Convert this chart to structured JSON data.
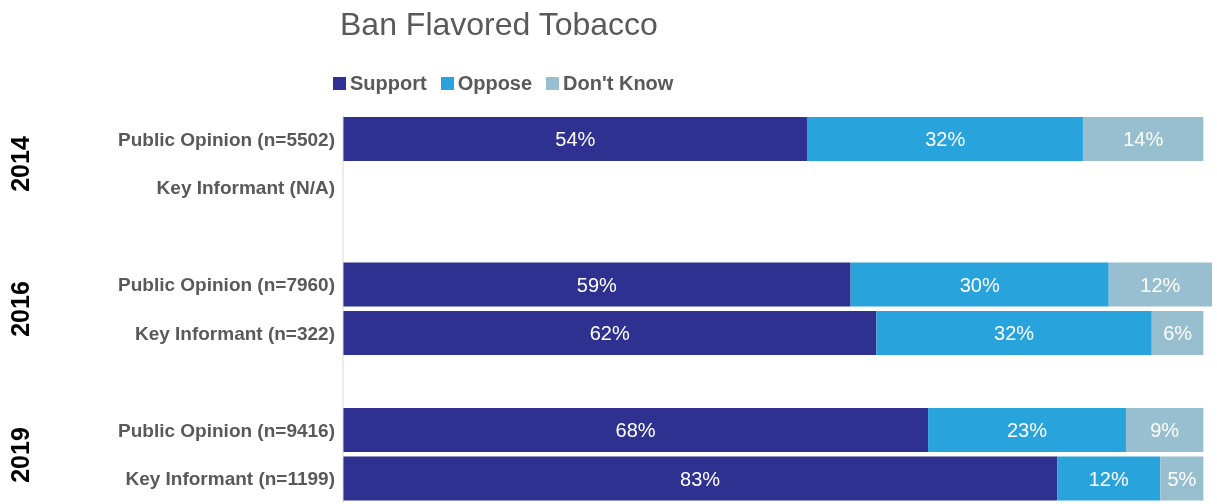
{
  "chart_data": {
    "type": "bar",
    "orientation": "horizontal",
    "stacked": true,
    "title": "Ban Flavored Tobacco",
    "categories": [
      "Public Opinion (n=5502)",
      "Key Informant (N/A)",
      null,
      "Public Opinion (n=7960)",
      "Key Informant (n=322)",
      null,
      "Public Opinion (n=9416)",
      "Key Informant (n=1199)"
    ],
    "series": [
      {
        "name": "Support",
        "color": "#2e3190",
        "values": [
          54,
          null,
          null,
          59,
          62,
          null,
          68,
          83
        ],
        "value_labels": [
          "54%",
          null,
          null,
          "59%",
          "62%",
          null,
          "68%",
          "83%"
        ]
      },
      {
        "name": "Oppose",
        "color": "#29a3dc",
        "values": [
          32,
          null,
          null,
          30,
          32,
          null,
          23,
          12
        ],
        "value_labels": [
          "32%",
          null,
          null,
          "30%",
          "32%",
          null,
          "23%",
          "12%"
        ]
      },
      {
        "name": "Don't Know",
        "color": "#98bfcf",
        "values": [
          14,
          null,
          null,
          12,
          6,
          null,
          9,
          5
        ],
        "value_labels": [
          "14%",
          null,
          null,
          "12%",
          "6%",
          null,
          "9%",
          "5%"
        ]
      }
    ],
    "annotations": [
      "2014",
      "2016",
      "2019"
    ],
    "legend": "top left"
  }
}
